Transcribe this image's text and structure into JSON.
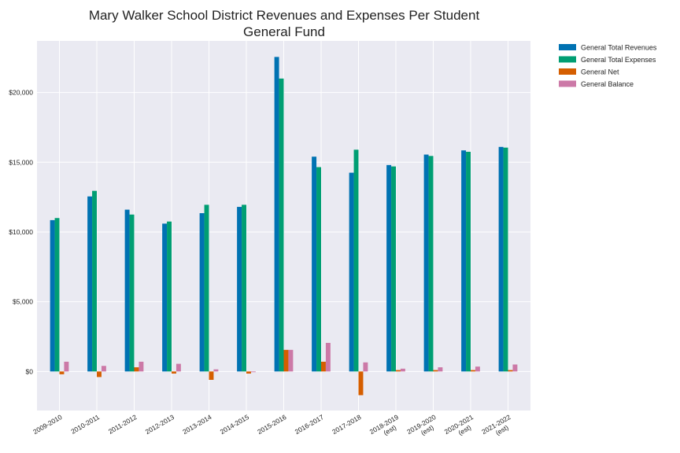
{
  "chart_data": {
    "type": "bar",
    "title_lines": [
      "Mary Walker School District Revenues and Expenses Per Student",
      "General Fund"
    ],
    "xlabel": "",
    "ylabel": "",
    "categories": [
      [
        "2009-2010"
      ],
      [
        "2010-2011"
      ],
      [
        "2011-2012"
      ],
      [
        "2012-2013"
      ],
      [
        "2013-2014"
      ],
      [
        "2014-2015"
      ],
      [
        "2015-2016"
      ],
      [
        "2016-2017"
      ],
      [
        "2017-2018"
      ],
      [
        "2018-2019",
        "(est)"
      ],
      [
        "2019-2020",
        "(est)"
      ],
      [
        "2020-2021",
        "(est)"
      ],
      [
        "2021-2022",
        "(est)"
      ]
    ],
    "ylim": [
      -2800,
      23700
    ],
    "yticks": [
      0,
      5000,
      10000,
      15000,
      20000
    ],
    "ytick_labels": [
      "$0",
      "$5,000",
      "$10,000",
      "$15,000",
      "$20,000"
    ],
    "grid": true,
    "legend_position": "outside-top-right",
    "series": [
      {
        "name": "General Total Revenues",
        "color": "#0072b2",
        "values": [
          10850,
          12550,
          11600,
          10600,
          11350,
          11800,
          22550,
          15400,
          14250,
          14800,
          15550,
          15850,
          16100
        ]
      },
      {
        "name": "General Total Expenses",
        "color": "#009e73",
        "values": [
          11000,
          12950,
          11250,
          10750,
          11950,
          11950,
          21000,
          14650,
          15900,
          14700,
          15450,
          15750,
          16050
        ]
      },
      {
        "name": "General Net",
        "color": "#d55e00",
        "values": [
          -200,
          -400,
          300,
          -150,
          -600,
          -150,
          1550,
          700,
          -1700,
          100,
          100,
          100,
          100
        ]
      },
      {
        "name": "General Balance",
        "color": "#cc79a7",
        "values": [
          700,
          400,
          700,
          550,
          150,
          -50,
          1550,
          2050,
          650,
          200,
          300,
          350,
          500
        ]
      }
    ]
  }
}
